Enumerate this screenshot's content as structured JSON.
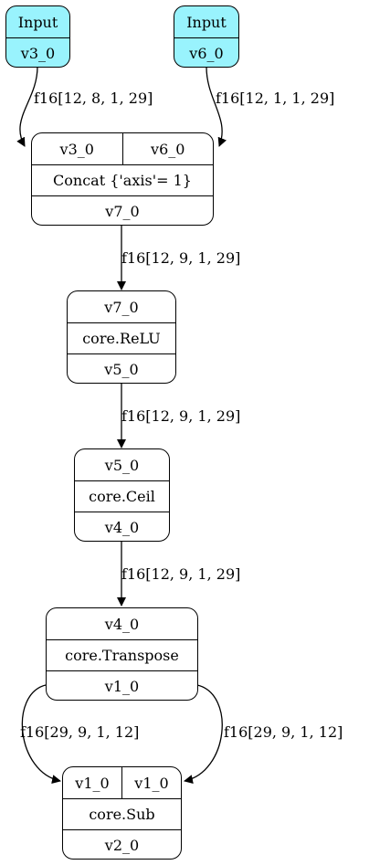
{
  "nodes": {
    "input_v3": {
      "title": "Input",
      "output": "v3_0"
    },
    "input_v6": {
      "title": "Input",
      "output": "v6_0"
    },
    "concat": {
      "inputs": [
        "v3_0",
        "v6_0"
      ],
      "op": "Concat {'axis'= 1}",
      "output": "v7_0"
    },
    "relu": {
      "input": "v7_0",
      "op": "core.ReLU",
      "output": "v5_0"
    },
    "ceil": {
      "input": "v5_0",
      "op": "core.Ceil",
      "output": "v4_0"
    },
    "transpose": {
      "input": "v4_0",
      "op": "core.Transpose",
      "output": "v1_0"
    },
    "sub": {
      "inputs": [
        "v1_0",
        "v1_0"
      ],
      "op": "core.Sub",
      "output": "v2_0"
    }
  },
  "edges": {
    "v3_to_concat": "f16[12, 8, 1, 29]",
    "v6_to_concat": "f16[12, 1, 1, 29]",
    "concat_to_relu": "f16[12, 9, 1, 29]",
    "relu_to_ceil": "f16[12, 9, 1, 29]",
    "ceil_to_transpose": "f16[12, 9, 1, 29]",
    "transpose_to_sub_left": "f16[29, 9, 1, 12]",
    "transpose_to_sub_right": "f16[29, 9, 1, 12]"
  },
  "colors": {
    "input_fill": "#99f3fd",
    "stroke": "#000000"
  }
}
